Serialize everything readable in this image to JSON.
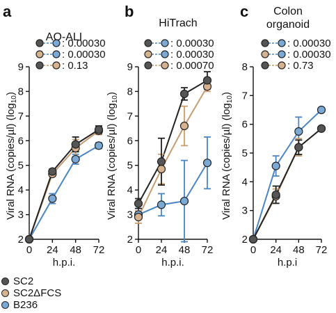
{
  "colors": {
    "SC2": "#555555",
    "SC2dFCS": "#d6b28e",
    "B236": "#7ba9d6",
    "line_SC2": "#222222",
    "line_SC2dFCS": "#c79c6f",
    "line_B236": "#4a86c3"
  },
  "legend": [
    {
      "label": "SC2",
      "color_key": "SC2"
    },
    {
      "label": "SC2ΔFCS",
      "color_key": "SC2dFCS"
    },
    {
      "label": "B236",
      "color_key": "B236"
    }
  ],
  "chart_data": [
    {
      "panel_letter": "a",
      "type": "line",
      "title": "AO-ALI",
      "xlabel": "h.p.i.",
      "ylabel": "Viral RNA (copies/µl) (log10)",
      "x": [
        0,
        24,
        48,
        72
      ],
      "xticks": [
        "0",
        "24",
        "48",
        "72"
      ],
      "ylim": [
        2,
        9
      ],
      "yticks": [
        2,
        3,
        4,
        5,
        6,
        7,
        8,
        9
      ],
      "pvalues": [
        {
          "pair": [
            "SC2",
            "B236"
          ],
          "text": ": 0.00030"
        },
        {
          "pair": [
            "SC2dFCS",
            "B236"
          ],
          "text": ": 0.00030"
        },
        {
          "pair": [
            "SC2",
            "SC2dFCS"
          ],
          "text": ": 0.13"
        }
      ],
      "series": [
        {
          "key": "SC2",
          "values": [
            2.0,
            4.75,
            5.85,
            6.45
          ],
          "err": [
            0,
            0.1,
            0.3,
            0.15
          ]
        },
        {
          "key": "SC2dFCS",
          "values": [
            2.0,
            4.65,
            5.7,
            6.4
          ],
          "err": [
            0,
            0.1,
            0.35,
            0.15
          ]
        },
        {
          "key": "B236",
          "values": [
            2.0,
            3.65,
            5.25,
            5.8
          ],
          "err": [
            0,
            0.2,
            0.2,
            0.12
          ]
        }
      ]
    },
    {
      "panel_letter": "b",
      "type": "line",
      "title": "HiTrach",
      "xlabel": "h.p.i.",
      "ylabel": "Viral RNA (copies/µl) (log10)",
      "x": [
        0,
        24,
        48,
        72
      ],
      "xticks": [
        "0",
        "24",
        "48",
        "72"
      ],
      "ylim": [
        2,
        9
      ],
      "yticks": [
        2,
        3,
        4,
        5,
        6,
        7,
        8,
        9
      ],
      "pvalues": [
        {
          "pair": [
            "SC2",
            "B236"
          ],
          "text": ": 0.00030"
        },
        {
          "pair": [
            "SC2dFCS",
            "B236"
          ],
          "text": ": 0.00030"
        },
        {
          "pair": [
            "SC2",
            "SC2dFCS"
          ],
          "text": ": 0.00070"
        }
      ],
      "series": [
        {
          "key": "SC2",
          "values": [
            3.45,
            5.15,
            7.9,
            8.45
          ],
          "err": [
            0.2,
            0.95,
            0.25,
            0.35
          ]
        },
        {
          "key": "SC2dFCS",
          "values": [
            2.9,
            4.85,
            6.6,
            8.2
          ],
          "err": [
            0.25,
            0.6,
            0.8,
            0.2
          ]
        },
        {
          "key": "B236",
          "values": [
            3.0,
            3.4,
            3.55,
            5.1
          ],
          "err": [
            0.15,
            0.45,
            1.65,
            1.05
          ]
        }
      ]
    },
    {
      "panel_letter": "c",
      "type": "line",
      "title": "Colon\norganoid",
      "xlabel": "h.p.i",
      "ylabel": "Viral RNA (copies/µl) (log10)",
      "x": [
        0,
        24,
        48,
        72
      ],
      "xticks": [
        "0",
        "24",
        "48",
        "72"
      ],
      "ylim": [
        2,
        8
      ],
      "yticks": [
        2,
        3,
        4,
        5,
        6,
        7,
        8
      ],
      "pvalues": [
        {
          "pair": [
            "SC2",
            "B236"
          ],
          "text": ": 0.00030"
        },
        {
          "pair": [
            "SC2dFCS",
            "B236"
          ],
          "text": ": 0.00030"
        },
        {
          "pair": [
            "SC2",
            "SC2dFCS"
          ],
          "text": ": 0.73"
        }
      ],
      "series": [
        {
          "key": "SC2",
          "values": [
            2.0,
            3.55,
            5.2,
            5.85
          ],
          "err": [
            0,
            0.3,
            0.25,
            0.05
          ]
        },
        {
          "key": "SC2dFCS",
          "values": [
            2.0,
            3.5,
            5.2,
            5.85
          ],
          "err": [
            0,
            0.25,
            0.3,
            0.05
          ]
        },
        {
          "key": "B236",
          "values": [
            2.0,
            4.55,
            5.75,
            6.5
          ],
          "err": [
            0,
            0.35,
            0.5,
            0.05
          ]
        }
      ]
    }
  ]
}
